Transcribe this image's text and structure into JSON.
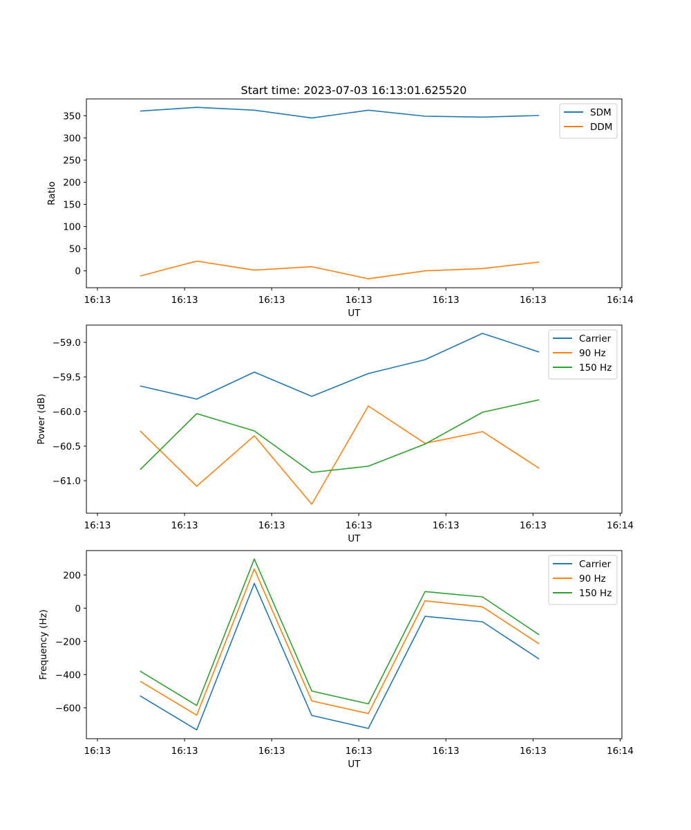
{
  "title": "Start time: 2023-07-03 16:13:01.625520",
  "colors": {
    "blue": "#1f77b4",
    "orange": "#ff7f0e",
    "green": "#2ca02c"
  },
  "chart_data": [
    {
      "type": "line",
      "xlabel": "UT",
      "ylabel": "Ratio",
      "x": [
        0.49,
        1.14,
        1.8,
        2.46,
        3.11,
        3.76,
        4.42,
        5.07
      ],
      "xlim": [
        -0.127,
        6.02
      ],
      "xticks": [
        0,
        1,
        2,
        3,
        4,
        5,
        6
      ],
      "xtick_labels": [
        "16:13",
        "16:13",
        "16:13",
        "16:13",
        "16:13",
        "16:13",
        "16:14"
      ],
      "ylim": [
        -38,
        388
      ],
      "yticks": [
        0,
        50,
        100,
        150,
        200,
        250,
        300,
        350
      ],
      "ytick_labels": [
        "0",
        "50",
        "100",
        "150",
        "200",
        "250",
        "300",
        "350"
      ],
      "legend": "top-right",
      "grid": false,
      "series": [
        {
          "name": "SDM",
          "color": "#1f77b4",
          "values": [
            360.5,
            369,
            362.6,
            345,
            362.6,
            349,
            347,
            350.6
          ]
        },
        {
          "name": "DDM",
          "color": "#ff7f0e",
          "values": [
            -11.5,
            22,
            1.6,
            9.4,
            -17.8,
            0,
            5.2,
            19.9
          ]
        }
      ]
    },
    {
      "type": "line",
      "xlabel": "UT",
      "ylabel": "Power (dB)",
      "x": [
        0.49,
        1.14,
        1.8,
        2.46,
        3.11,
        3.76,
        4.42,
        5.07
      ],
      "xlim": [
        -0.127,
        6.02
      ],
      "xticks": [
        0,
        1,
        2,
        3,
        4,
        5,
        6
      ],
      "xtick_labels": [
        "16:13",
        "16:13",
        "16:13",
        "16:13",
        "16:13",
        "16:13",
        "16:14"
      ],
      "ylim": [
        -61.47,
        -58.75
      ],
      "yticks": [
        -61.0,
        -60.5,
        -60.0,
        -59.5,
        -59.0
      ],
      "ytick_labels": [
        "−61.0",
        "−60.5",
        "−60.0",
        "−59.5",
        "−59.0"
      ],
      "legend": "top-right",
      "grid": false,
      "series": [
        {
          "name": "Carrier",
          "color": "#1f77b4",
          "values": [
            -59.63,
            -59.82,
            -59.43,
            -59.78,
            -59.45,
            -59.25,
            -58.87,
            -59.14
          ]
        },
        {
          "name": "90 Hz",
          "color": "#ff7f0e",
          "values": [
            -60.28,
            -61.08,
            -60.35,
            -61.34,
            -59.92,
            -60.46,
            -60.29,
            -60.82
          ]
        },
        {
          "name": "150 Hz",
          "color": "#2ca02c",
          "values": [
            -60.84,
            -60.03,
            -60.28,
            -60.88,
            -60.79,
            -60.47,
            -60.01,
            -59.83
          ]
        }
      ]
    },
    {
      "type": "line",
      "xlabel": "UT",
      "ylabel": "Frequency (Hz)",
      "x": [
        0.49,
        1.14,
        1.8,
        2.46,
        3.11,
        3.76,
        4.42,
        5.07
      ],
      "xlim": [
        -0.127,
        6.02
      ],
      "xticks": [
        0,
        1,
        2,
        3,
        4,
        5,
        6
      ],
      "xtick_labels": [
        "16:13",
        "16:13",
        "16:13",
        "16:13",
        "16:13",
        "16:13",
        "16:14"
      ],
      "ylim": [
        -786,
        347
      ],
      "yticks": [
        -600,
        -400,
        -200,
        0,
        200
      ],
      "ytick_labels": [
        "−600",
        "−400",
        "−200",
        "0",
        "200"
      ],
      "legend": "top-right",
      "grid": false,
      "series": [
        {
          "name": "Carrier",
          "color": "#1f77b4",
          "values": [
            -528,
            -733,
            149,
            -646,
            -724,
            -49,
            -82,
            -306
          ]
        },
        {
          "name": "90 Hz",
          "color": "#ff7f0e",
          "values": [
            -440,
            -644,
            236,
            -558,
            -635,
            44,
            8,
            -215
          ]
        },
        {
          "name": "150 Hz",
          "color": "#2ca02c",
          "values": [
            -379,
            -586,
            296,
            -499,
            -576,
            100,
            68,
            -160
          ]
        }
      ]
    }
  ]
}
